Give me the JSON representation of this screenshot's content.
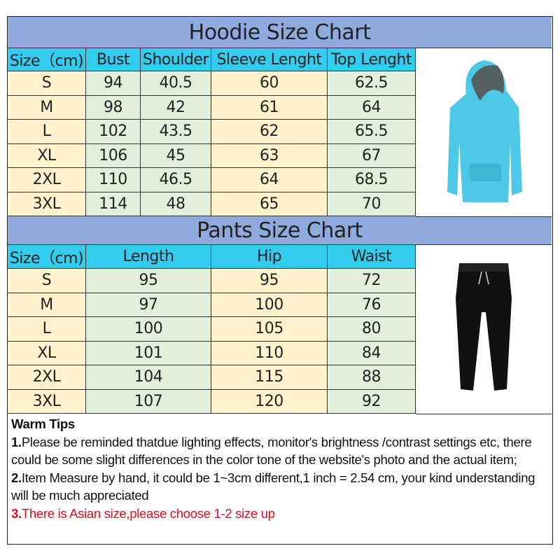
{
  "hoodie": {
    "title": "Hoodie Size Chart",
    "headers": [
      "Size（cm)",
      "Bust",
      "Shoulder",
      "Sleeve Lenght",
      "Top Lenght"
    ],
    "rows": [
      [
        "S",
        "94",
        "40.5",
        "60",
        "62.5"
      ],
      [
        "M",
        "98",
        "42",
        "61",
        "64"
      ],
      [
        "L",
        "102",
        "43.5",
        "62",
        "65.5"
      ],
      [
        "XL",
        "106",
        "45",
        "63",
        "67"
      ],
      [
        "2XL",
        "110",
        "46.5",
        "64",
        "68.5"
      ],
      [
        "3XL",
        "114",
        "48",
        "65",
        "70"
      ]
    ],
    "image_color": "#4dc8e6"
  },
  "pants": {
    "title": "Pants Size Chart",
    "headers": [
      "Size（cm)",
      "Length",
      "Hip",
      "Waist"
    ],
    "rows": [
      [
        "S",
        "95",
        "95",
        "72"
      ],
      [
        "M",
        "97",
        "100",
        "76"
      ],
      [
        "L",
        "100",
        "105",
        "80"
      ],
      [
        "XL",
        "101",
        "110",
        "84"
      ],
      [
        "2XL",
        "104",
        "115",
        "88"
      ],
      [
        "3XL",
        "107",
        "120",
        "92"
      ]
    ],
    "image_color": "#111111"
  },
  "tips": {
    "title": "Warm Tips",
    "items": [
      {
        "num": "1.",
        "text": "Please be reminded thatdue lighting effects, monitor's brightness /contrast settings etc, there could be some slight differences in the color tone of the website's photo and the actual item;"
      },
      {
        "num": "2.",
        "text": "Item Measure by hand, it could be 1~3cm different,1 inch = 2.54 cm, your kind understanding will be much appreciated"
      },
      {
        "num": "3.",
        "text": "There is Asian size,please choose 1-2 size up"
      }
    ]
  },
  "colors": {
    "title_bg": "#8faadc",
    "header_bg": "#33ccee",
    "cream": "#fff2cc",
    "green": "#e2efda",
    "warning": "#e01020"
  }
}
